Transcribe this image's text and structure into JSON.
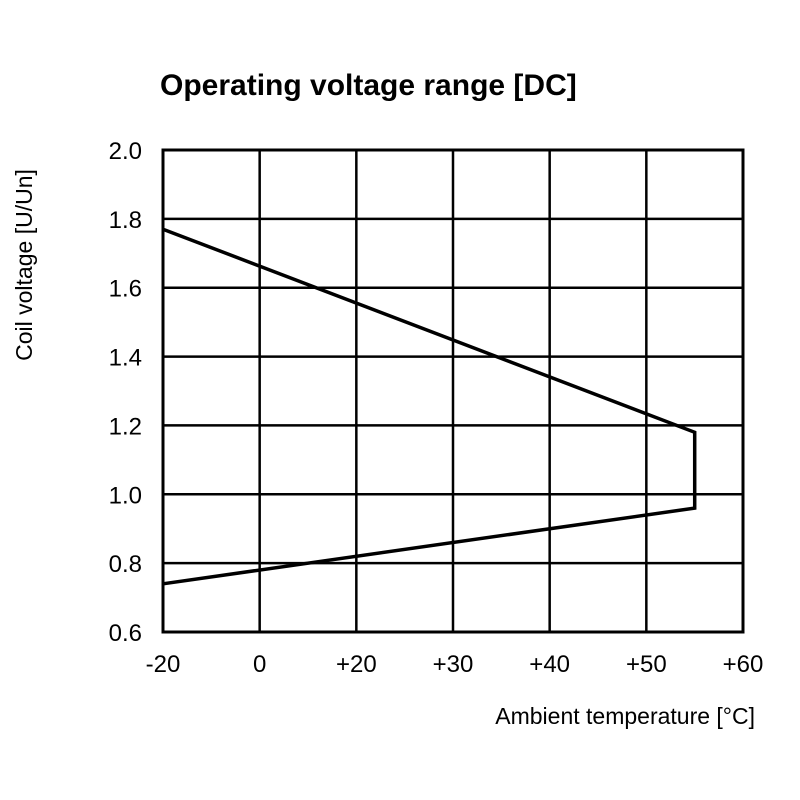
{
  "chart_data": {
    "type": "line",
    "title": "Operating voltage range [DC]",
    "xlabel": "Ambient temperature [°C]",
    "ylabel": "Coil voltage [U/Un]",
    "x_tick_labels": [
      "-20",
      "0",
      "+20",
      "+30",
      "+40",
      "+50",
      "+60"
    ],
    "y_tick_labels": [
      "2.0",
      "1.8",
      "1.6",
      "1.4",
      "1.2",
      "1.0",
      "0.8",
      "0.6"
    ],
    "x_scale": "categorical-equal-spacing",
    "ylim": [
      0.6,
      2.0
    ],
    "grid": true,
    "legend": "none",
    "series": [
      {
        "x": [
          -20,
          55,
          55,
          -20
        ],
        "y": [
          1.77,
          1.18,
          0.96,
          0.74
        ]
      }
    ],
    "line_color": "#000000"
  }
}
